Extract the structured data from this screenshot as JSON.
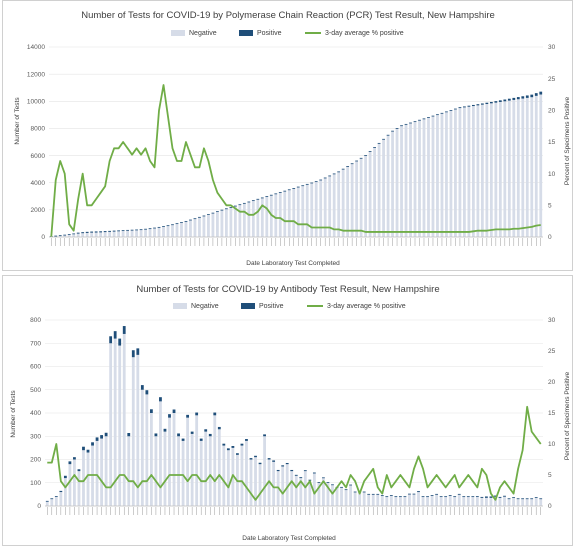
{
  "chart_data": [
    {
      "type": "bar",
      "title": "Number of Tests for COVID-19 by Polymerase Chain Reaction (PCR) Test Result, New Hampshire",
      "xlabel": "Date Laboratory Test Completed",
      "ylabel": "Number of Tests",
      "y2label": "Percent of Specimens Positive",
      "ylim": [
        0,
        14000
      ],
      "y2lim": [
        0,
        30
      ],
      "yticks": [
        "0",
        "2000",
        "4000",
        "6000",
        "8000",
        "10000",
        "12000",
        "14000"
      ],
      "y2ticks": [
        "0",
        "5",
        "10",
        "15",
        "20",
        "25",
        "30"
      ],
      "stacked": true,
      "legend_position": "top-center",
      "grid": true,
      "series": [
        {
          "name": "Negative",
          "color": "#d6dce8",
          "kind": "bar",
          "values": [
            60,
            80,
            100,
            130,
            160,
            200,
            250,
            280,
            300,
            320,
            330,
            340,
            360,
            380,
            400,
            420,
            440,
            460,
            480,
            500,
            520,
            560,
            600,
            650,
            700,
            760,
            830,
            900,
            980,
            1060,
            1150,
            1250,
            1350,
            1450,
            1550,
            1650,
            1760,
            1870,
            1980,
            2080,
            2180,
            2280,
            2380,
            2480,
            2580,
            2680,
            2780,
            2880,
            2980,
            3080,
            3180,
            3280,
            3380,
            3480,
            3580,
            3680,
            3780,
            3880,
            3980,
            4080,
            4200,
            4350,
            4500,
            4650,
            4800,
            5000,
            5200,
            5400,
            5600,
            5800,
            6000,
            6300,
            6600,
            6900,
            7200,
            7500,
            7800,
            8000,
            8200,
            8300,
            8400,
            8500,
            8600,
            8700,
            8800,
            8900,
            9000,
            9100,
            9200,
            9300,
            9400,
            9500,
            9550,
            9600,
            9650,
            9700,
            9750,
            9800,
            9850,
            9900,
            9950,
            10000,
            10050,
            10100,
            10150,
            10200,
            10250,
            10300,
            10400,
            10500
          ]
        },
        {
          "name": "Positive",
          "color": "#1f4e79",
          "kind": "bar",
          "values": [
            15,
            20,
            30,
            40,
            50,
            60,
            70,
            75,
            80,
            80,
            80,
            80,
            75,
            70,
            70,
            65,
            60,
            60,
            55,
            50,
            50,
            45,
            45,
            40,
            40,
            40,
            35,
            35,
            35,
            30,
            30,
            30,
            30,
            30,
            30,
            30,
            30,
            30,
            30,
            30,
            30,
            30,
            30,
            30,
            30,
            30,
            30,
            30,
            30,
            30,
            30,
            30,
            30,
            30,
            30,
            30,
            30,
            30,
            30,
            30,
            30,
            30,
            30,
            30,
            30,
            30,
            30,
            30,
            30,
            30,
            30,
            30,
            30,
            30,
            30,
            30,
            30,
            30,
            30,
            30,
            30,
            30,
            35,
            35,
            40,
            40,
            45,
            45,
            50,
            55,
            60,
            65,
            70,
            75,
            80,
            85,
            90,
            95,
            100,
            110,
            120,
            130,
            140,
            150,
            160,
            170,
            180,
            190,
            200,
            210
          ]
        },
        {
          "name": "3-day average % positive",
          "color": "#70ad47",
          "kind": "line",
          "axis": "right",
          "values": [
            0,
            9,
            12,
            10,
            2,
            1,
            6,
            10,
            5,
            5,
            6,
            7,
            8,
            12,
            14,
            14,
            15,
            14,
            13,
            14,
            13,
            14,
            12,
            11,
            20,
            24,
            19,
            14,
            12,
            12,
            15,
            13,
            11,
            11,
            14,
            12,
            9,
            7,
            6,
            5,
            5,
            4.5,
            4,
            4,
            3.5,
            3.5,
            4,
            5,
            4.5,
            3.5,
            3,
            3,
            2.5,
            2.5,
            2.5,
            2,
            2,
            2,
            1.5,
            1.5,
            1.5,
            1.5,
            1.5,
            1.2,
            1.2,
            1,
            1,
            1,
            1,
            1,
            0.8,
            0.8,
            0.8,
            0.8,
            0.8,
            0.8,
            0.8,
            0.8,
            0.8,
            0.8,
            0.8,
            0.8,
            0.8,
            0.8,
            0.8,
            0.8,
            0.8,
            0.8,
            0.8,
            0.8,
            0.8,
            0.8,
            0.8,
            0.8,
            0.9,
            1,
            1,
            1,
            1.1,
            1.2,
            1.2,
            1.2,
            1.2,
            1.3,
            1.3,
            1.4,
            1.5,
            1.6,
            1.8,
            1.9
          ]
        }
      ]
    },
    {
      "type": "bar",
      "title": "Number of Tests for COVID-19 by Antibody Test Result, New Hampshire",
      "xlabel": "Date Laboratory Test Completed",
      "ylabel": "Number of Tests",
      "y2label": "Percent of Specimens Positive",
      "ylim": [
        0,
        800
      ],
      "y2lim": [
        0,
        30
      ],
      "yticks": [
        "0",
        "100",
        "200",
        "300",
        "400",
        "500",
        "600",
        "700",
        "800"
      ],
      "y2ticks": [
        "0",
        "5",
        "10",
        "15",
        "20",
        "25",
        "30"
      ],
      "stacked": true,
      "legend_position": "top-center",
      "grid": true,
      "series": [
        {
          "name": "Negative",
          "color": "#d6dce8",
          "kind": "bar",
          "values": [
            20,
            30,
            40,
            60,
            120,
            180,
            200,
            150,
            240,
            230,
            260,
            280,
            290,
            300,
            700,
            720,
            690,
            740,
            300,
            640,
            650,
            500,
            480,
            400,
            300,
            450,
            320,
            380,
            400,
            300,
            280,
            380,
            310,
            390,
            280,
            320,
            300,
            390,
            330,
            260,
            240,
            250,
            220,
            260,
            280,
            200,
            210,
            180,
            300,
            200,
            190,
            150,
            170,
            180,
            150,
            130,
            120,
            150,
            110,
            140,
            100,
            120,
            100,
            90,
            80,
            80,
            70,
            90,
            60,
            60,
            60,
            50,
            50,
            50,
            45,
            40,
            45,
            40,
            40,
            40,
            50,
            50,
            60,
            40,
            40,
            45,
            50,
            40,
            40,
            45,
            40,
            50,
            40,
            40,
            40,
            40,
            35,
            35,
            35,
            40,
            35,
            40,
            30,
            35,
            30,
            30,
            30,
            30,
            35,
            30
          ]
        },
        {
          "name": "Positive",
          "color": "#1f4e79",
          "kind": "bar",
          "values": [
            2,
            3,
            3,
            5,
            10,
            12,
            10,
            8,
            15,
            12,
            14,
            15,
            15,
            15,
            30,
            32,
            30,
            34,
            14,
            30,
            28,
            20,
            18,
            16,
            12,
            18,
            12,
            15,
            15,
            12,
            10,
            12,
            10,
            12,
            10,
            10,
            10,
            12,
            10,
            8,
            8,
            8,
            7,
            8,
            8,
            6,
            6,
            6,
            8,
            6,
            6,
            5,
            5,
            5,
            5,
            4,
            4,
            4,
            3,
            4,
            3,
            3,
            3,
            3,
            2,
            2,
            2,
            2,
            2,
            2,
            2,
            2,
            2,
            2,
            2,
            2,
            2,
            2,
            2,
            2,
            3,
            3,
            4,
            2,
            2,
            2,
            2,
            2,
            2,
            2,
            2,
            2,
            2,
            2,
            2,
            3,
            4,
            6,
            6,
            5,
            4,
            4,
            3,
            3,
            3,
            3,
            3,
            3,
            3,
            3
          ]
        },
        {
          "name": "3-day average % positive",
          "color": "#70ad47",
          "kind": "line",
          "axis": "right",
          "values": [
            7,
            7,
            10,
            4,
            3,
            4,
            5,
            4,
            4,
            5,
            5,
            5,
            4,
            3,
            3,
            4,
            5,
            5,
            4,
            4,
            3,
            4,
            4,
            5,
            4,
            3,
            4,
            5,
            5,
            5,
            5,
            4,
            5,
            5,
            4,
            4,
            5,
            4,
            5,
            4,
            3,
            5,
            4,
            4,
            3,
            2,
            1,
            2,
            3,
            4,
            3,
            3,
            2,
            3,
            4,
            3,
            4,
            3,
            4,
            2,
            3,
            4,
            3,
            2,
            3,
            4,
            3,
            5,
            4,
            2,
            4,
            5,
            6,
            3,
            2,
            5,
            3,
            4,
            5,
            4,
            3,
            6,
            8,
            6,
            3,
            4,
            5,
            4,
            3,
            4,
            5,
            3,
            4,
            5,
            4,
            3,
            6,
            5,
            2,
            1,
            3,
            4,
            3,
            2,
            6,
            9,
            16,
            12,
            11,
            10
          ]
        }
      ]
    }
  ]
}
